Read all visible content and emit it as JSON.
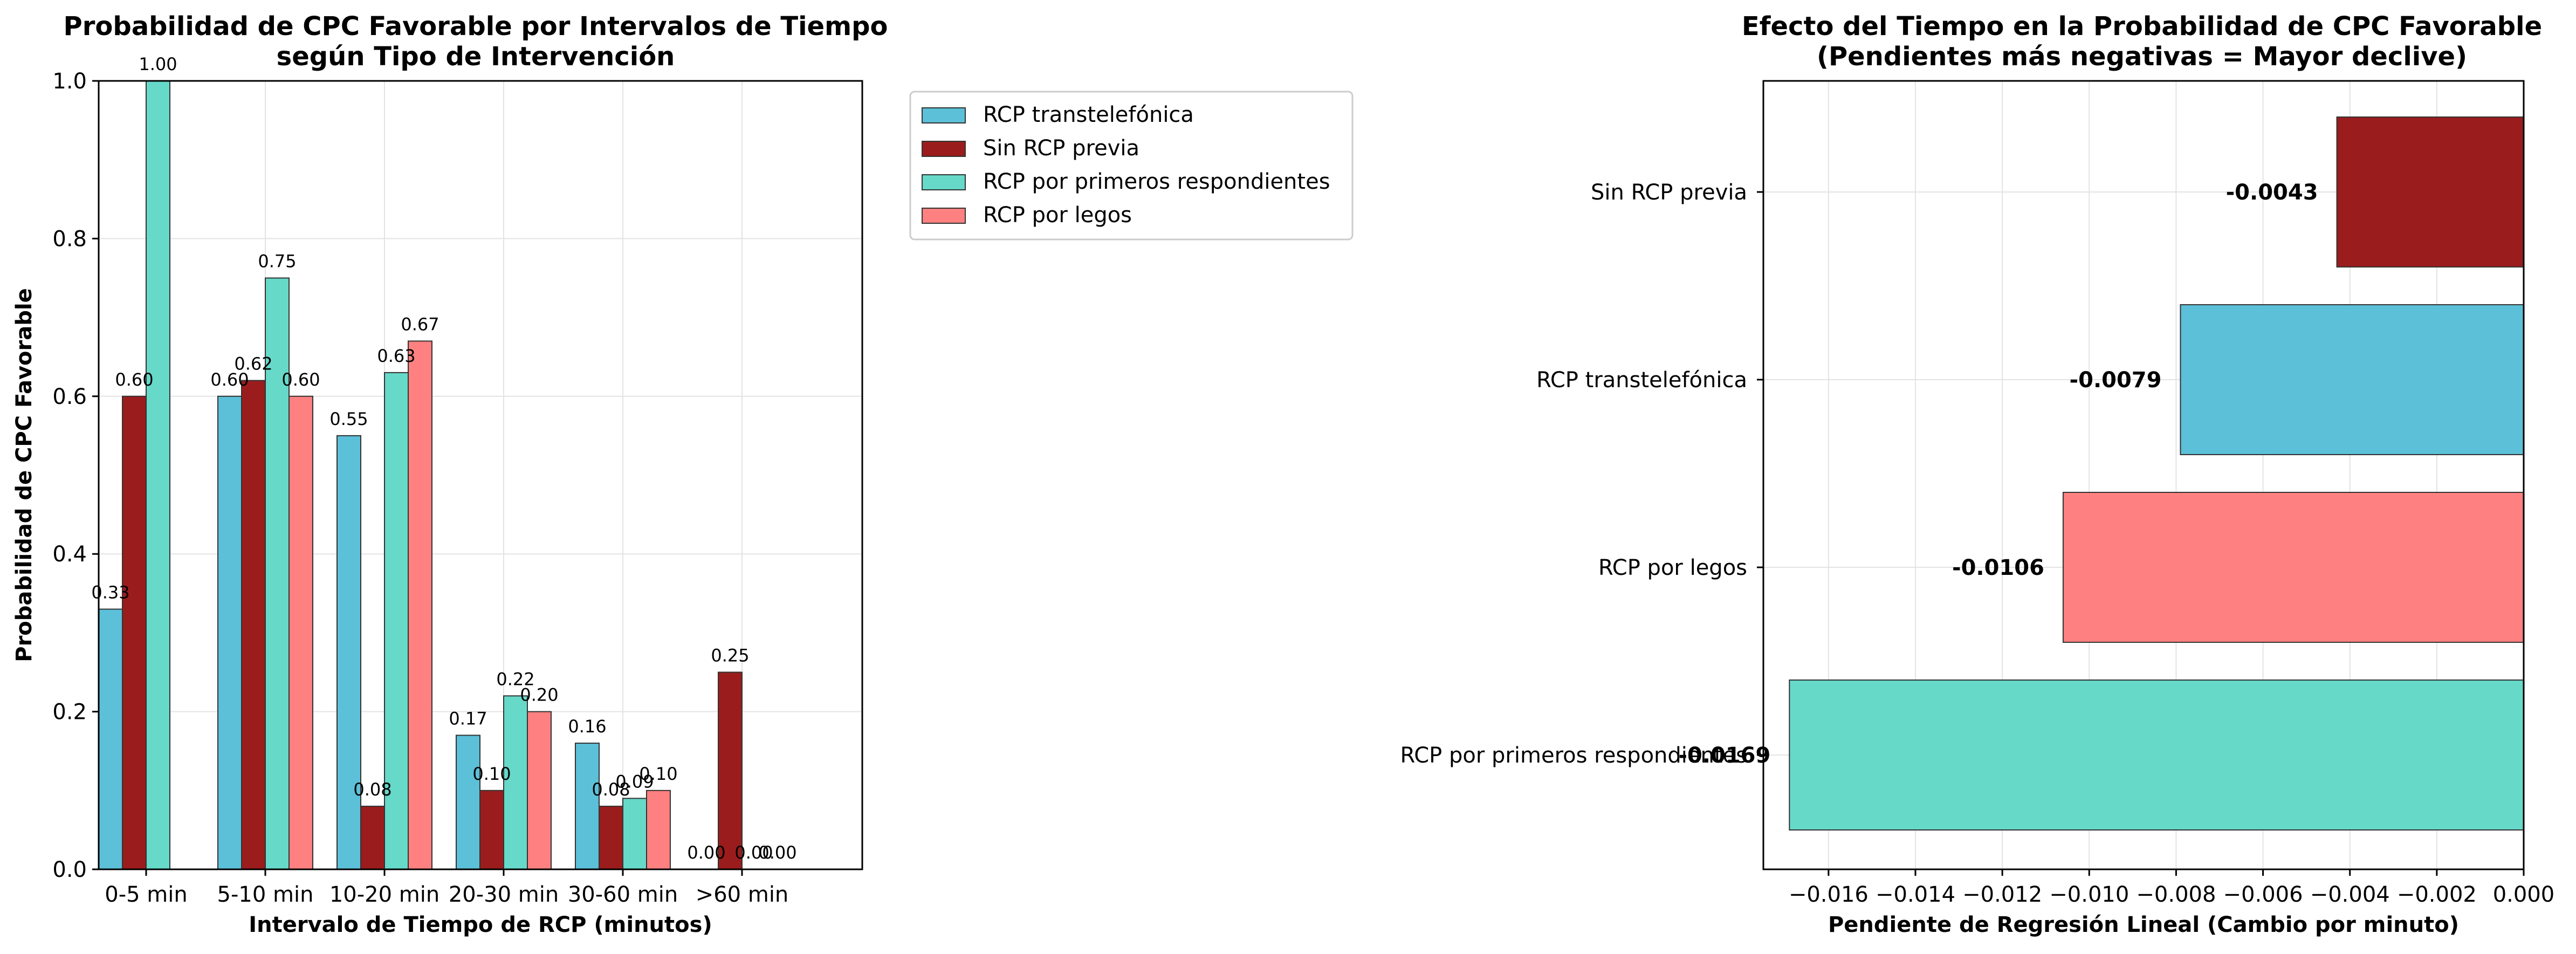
{
  "colors": {
    "RCP transtelefónica": "#5bc0d8",
    "Sin RCP previa": "#9b1c1c",
    "RCP por primeros respondientes": "#66d9c9",
    "RCP por legos": "#ff8080"
  },
  "chart_data": [
    {
      "type": "bar",
      "title": "Probabilidad de CPC Favorable por Intervalos de Tiempo\nsegún Tipo de Intervención",
      "xlabel": "Intervalo de Tiempo de RCP (minutos)",
      "ylabel": "Probabilidad de CPC Favorable",
      "ylim": [
        0,
        1.0
      ],
      "yticks": [
        "0.0",
        "0.2",
        "0.4",
        "0.6",
        "0.8",
        "1.0"
      ],
      "grid": true,
      "legend": "outside-right",
      "categories": [
        "0-5 min",
        "5-10 min",
        "10-20 min",
        "20-30 min",
        "30-60 min",
        ">60 min"
      ],
      "series": [
        {
          "name": "RCP transtelefónica",
          "values": [
            0.33,
            0.6,
            0.55,
            0.17,
            0.16,
            0.0
          ],
          "labels": [
            "0.33",
            "0.60",
            "0.55",
            "0.17",
            "0.16",
            "0.00"
          ]
        },
        {
          "name": "Sin RCP previa",
          "values": [
            0.6,
            0.62,
            0.08,
            0.1,
            0.08,
            0.25
          ],
          "labels": [
            "0.60",
            "0.62",
            "0.08",
            "0.10",
            "0.08",
            "0.25"
          ]
        },
        {
          "name": "RCP por primeros respondientes",
          "values": [
            1.0,
            0.75,
            0.63,
            0.22,
            0.09,
            0.0
          ],
          "labels": [
            "1.00",
            "0.75",
            "0.63",
            "0.22",
            "0.09",
            "0.00"
          ]
        },
        {
          "name": "RCP por legos",
          "values": [
            null,
            0.6,
            0.67,
            0.2,
            0.1,
            0.0
          ],
          "labels": [
            null,
            "0.60",
            "0.67",
            "0.20",
            "0.10",
            "0.00"
          ]
        }
      ]
    },
    {
      "type": "bar",
      "orientation": "horizontal",
      "title": "Efecto del Tiempo en la Probabilidad de CPC Favorable\n(Pendientes más negativas = Mayor declive)",
      "xlabel": "Pendiente de Regresión Lineal (Cambio por minuto)",
      "ylabel": "",
      "xlim": [
        -0.0175,
        0.0
      ],
      "xticks": [
        "−0.016",
        "−0.014",
        "−0.012",
        "−0.010",
        "−0.008",
        "−0.006",
        "−0.004",
        "−0.002",
        "0.000"
      ],
      "grid": true,
      "categories": [
        "Sin RCP previa",
        "RCP transtelefónica",
        "RCP por legos",
        "RCP por primeros respondientes"
      ],
      "values": [
        -0.0043,
        -0.0079,
        -0.0106,
        -0.0169
      ],
      "labels": [
        "-0.0043",
        "-0.0079",
        "-0.0106",
        "-0.0169"
      ]
    }
  ]
}
